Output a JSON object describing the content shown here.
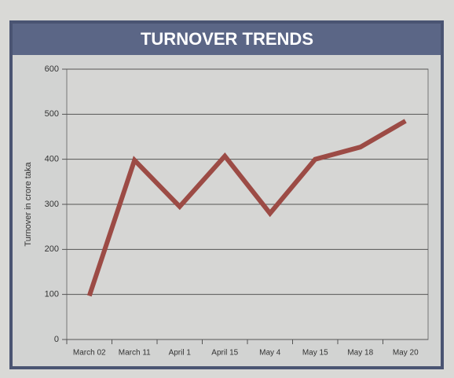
{
  "chart_data": {
    "type": "line",
    "title": "TURNOVER TRENDS",
    "y_label": "Turnover in crore taka",
    "categories": [
      "March 02",
      "March 11",
      "April 1",
      "April 15",
      "May 4",
      "May 15",
      "May 18",
      "May 20"
    ],
    "values": [
      97,
      398,
      295,
      407,
      280,
      400,
      427,
      485
    ],
    "color": "#9c4b45",
    "ylim": [
      0,
      600
    ],
    "yticks": [
      0,
      100,
      200,
      300,
      400,
      500,
      600
    ],
    "grid": true
  }
}
